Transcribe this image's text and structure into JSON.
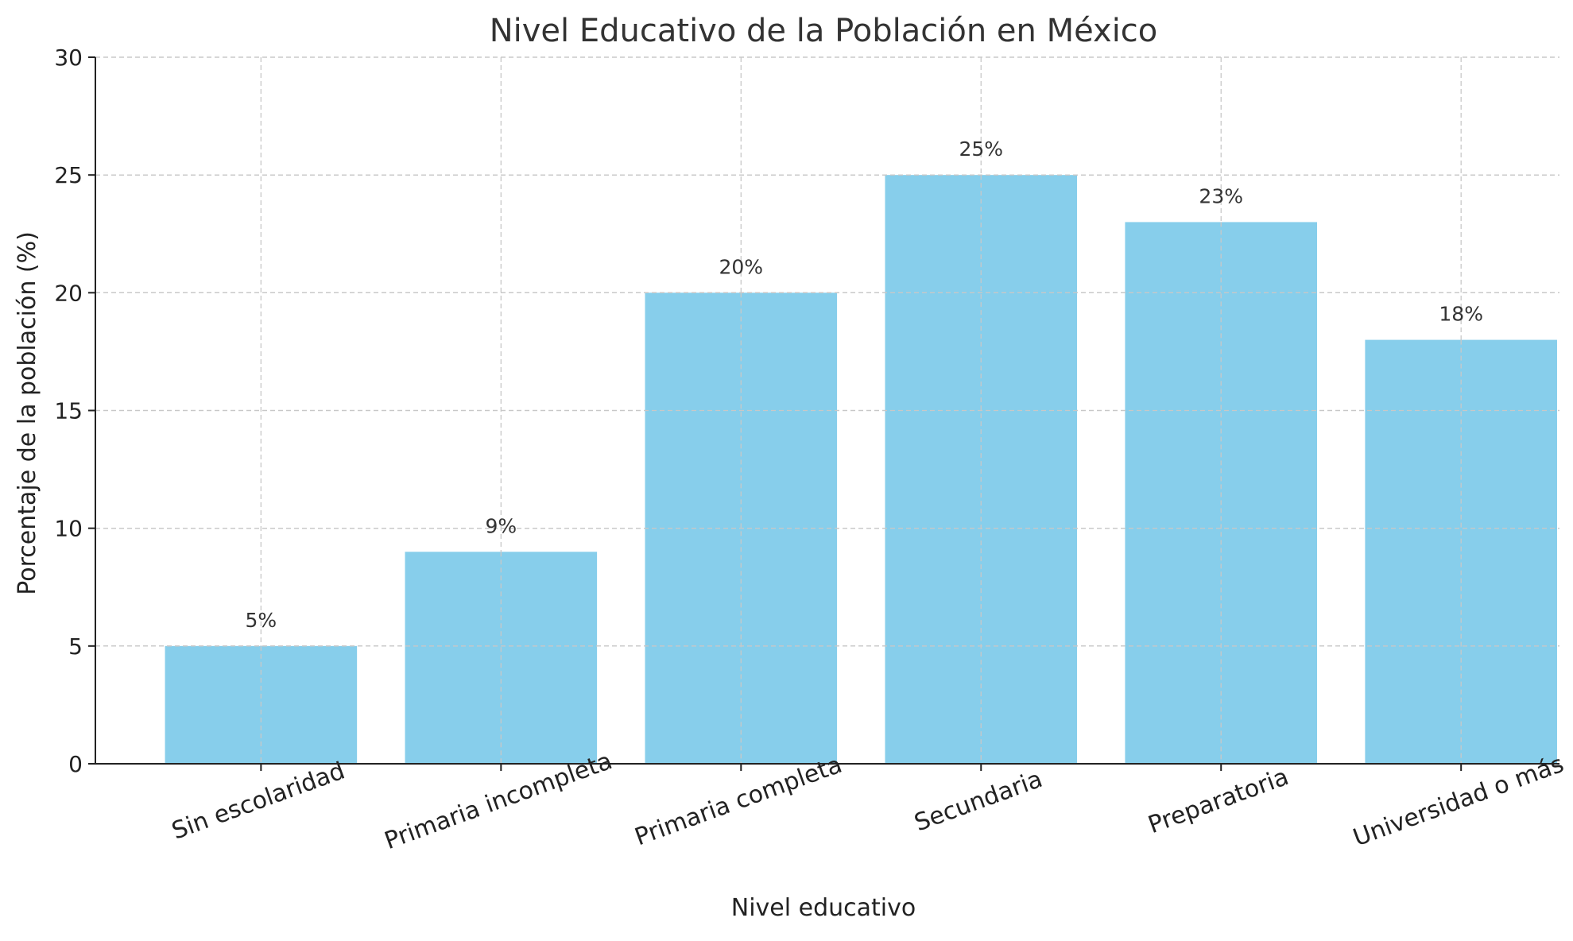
{
  "chart_data": {
    "type": "bar",
    "title": "Nivel Educativo de la Población en México",
    "xlabel": "Nivel educativo",
    "ylabel": "Porcentaje de la población (%)",
    "categories": [
      "Sin escolaridad",
      "Primaria incompleta",
      "Primaria completa",
      "Secundaria",
      "Preparatoria",
      "Universidad o más"
    ],
    "values": [
      5,
      9,
      20,
      25,
      23,
      18
    ],
    "data_labels": [
      "5%",
      "9%",
      "20%",
      "25%",
      "23%",
      "18%"
    ],
    "ylim": [
      0,
      30
    ],
    "yticks": [
      0,
      5,
      10,
      15,
      20,
      25,
      30
    ],
    "grid": true,
    "bar_color": "#87CEEB"
  }
}
